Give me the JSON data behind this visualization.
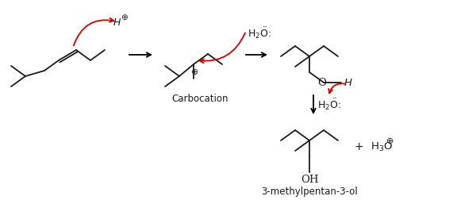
{
  "bg_color": "#ffffff",
  "line_color": "#1a1a1a",
  "arrow_color": "#cc0000",
  "text_color": "#1a1a1a",
  "carbocation_label": "Carbocation",
  "product_label": "3-methylpentan-3-ol",
  "plus_symbol": "⊕",
  "figsize": [
    5.76,
    2.53
  ],
  "dpi": 100
}
